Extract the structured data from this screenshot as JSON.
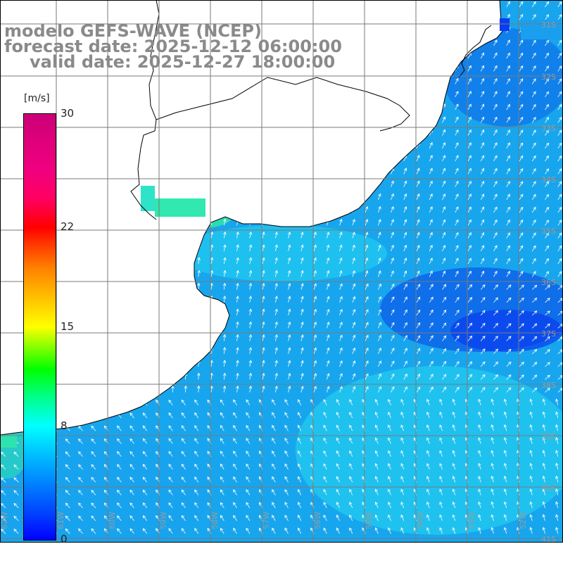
{
  "title": {
    "line1": "modelo GEFS-WAVE (NCEP)",
    "line2": "forecast date: 2025-12-12 06:00:00",
    "line3": "valid date: 2025-12-27 18:00:00"
  },
  "colorbar": {
    "unit": "[m/s]",
    "min": 0,
    "max": 30,
    "ticks": [
      "30",
      "22",
      "15",
      "8",
      "0"
    ],
    "tick_values": [
      30,
      22,
      15,
      8,
      0
    ]
  },
  "map": {
    "lat_labels": [
      "31S",
      "32S",
      "33S",
      "34S",
      "35S",
      "36S",
      "37S",
      "38S",
      "39S",
      "40S",
      "41S"
    ],
    "lon_labels": [
      "62W",
      "61W",
      "60W",
      "59W",
      "58W",
      "57W",
      "56W",
      "55W",
      "54W",
      "53W",
      "52W"
    ],
    "colors": {
      "land": "#ffffff",
      "coast": "#000000",
      "grid": "#808080",
      "arrow": "#ffffff",
      "title": "#8a8a8a"
    }
  }
}
